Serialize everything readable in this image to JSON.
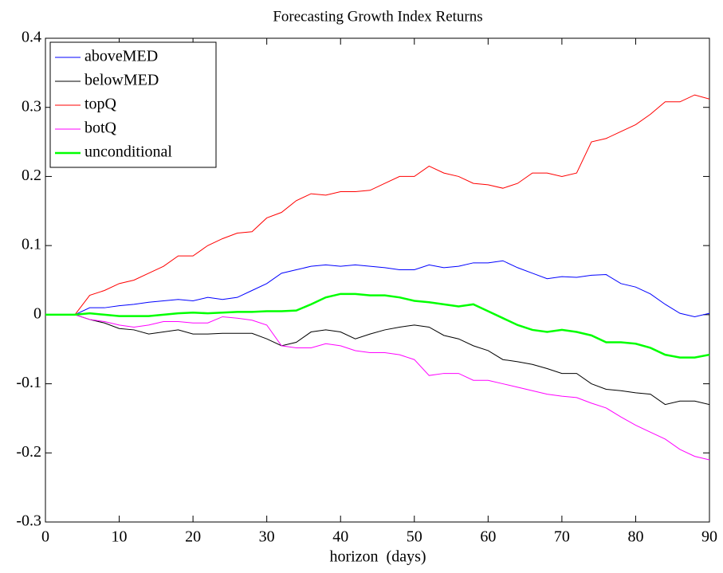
{
  "chart_data": {
    "type": "line",
    "title": "Forecasting Growth Index Returns",
    "x_label": "horizon  (days)",
    "x": [
      0,
      2,
      4,
      6,
      8,
      10,
      12,
      14,
      16,
      18,
      20,
      22,
      24,
      26,
      28,
      30,
      32,
      34,
      36,
      38,
      40,
      42,
      44,
      46,
      48,
      50,
      52,
      54,
      56,
      58,
      60,
      62,
      64,
      66,
      68,
      70,
      72,
      74,
      76,
      78,
      80,
      82,
      84,
      86,
      88,
      90
    ],
    "xlim": [
      0,
      90
    ],
    "xticks": [
      0,
      10,
      20,
      30,
      40,
      50,
      60,
      70,
      80,
      90
    ],
    "ylim": [
      -0.3,
      0.4
    ],
    "yticks": [
      -0.3,
      -0.2,
      -0.1,
      0,
      0.1,
      0.2,
      0.3,
      0.4
    ],
    "legend": "upper-left",
    "series": [
      {
        "name": "aboveMED",
        "color": "#0000ff",
        "linewidth": 1,
        "values": [
          0,
          0,
          0,
          0.01,
          0.01,
          0.013,
          0.015,
          0.018,
          0.02,
          0.022,
          0.02,
          0.025,
          0.022,
          0.025,
          0.035,
          0.045,
          0.06,
          0.065,
          0.07,
          0.072,
          0.07,
          0.072,
          0.07,
          0.068,
          0.065,
          0.065,
          0.072,
          0.068,
          0.07,
          0.075,
          0.075,
          0.078,
          0.068,
          0.06,
          0.052,
          0.055,
          0.054,
          0.057,
          0.058,
          0.045,
          0.04,
          0.03,
          0.015,
          0.002,
          -0.003,
          0.002
        ]
      },
      {
        "name": "belowMED",
        "color": "#000000",
        "linewidth": 1,
        "values": [
          0,
          0,
          0,
          -0.007,
          -0.012,
          -0.02,
          -0.022,
          -0.028,
          -0.025,
          -0.022,
          -0.028,
          -0.028,
          -0.027,
          -0.027,
          -0.027,
          -0.035,
          -0.045,
          -0.04,
          -0.025,
          -0.022,
          -0.025,
          -0.035,
          -0.028,
          -0.022,
          -0.018,
          -0.015,
          -0.018,
          -0.03,
          -0.035,
          -0.045,
          -0.052,
          -0.065,
          -0.068,
          -0.072,
          -0.078,
          -0.085,
          -0.085,
          -0.1,
          -0.108,
          -0.11,
          -0.113,
          -0.115,
          -0.13,
          -0.125,
          -0.125,
          -0.13
        ]
      },
      {
        "name": "topQ",
        "color": "#ff0000",
        "linewidth": 1,
        "values": [
          0,
          0,
          0,
          0.028,
          0.035,
          0.045,
          0.05,
          0.06,
          0.07,
          0.085,
          0.085,
          0.1,
          0.11,
          0.118,
          0.12,
          0.14,
          0.148,
          0.165,
          0.175,
          0.173,
          0.178,
          0.178,
          0.18,
          0.19,
          0.2,
          0.2,
          0.215,
          0.205,
          0.2,
          0.19,
          0.188,
          0.183,
          0.19,
          0.205,
          0.205,
          0.2,
          0.205,
          0.25,
          0.255,
          0.265,
          0.275,
          0.29,
          0.308,
          0.308,
          0.318,
          0.312
        ]
      },
      {
        "name": "botQ",
        "color": "#ff00ff",
        "linewidth": 1,
        "values": [
          0,
          0,
          0,
          -0.007,
          -0.01,
          -0.015,
          -0.018,
          -0.015,
          -0.01,
          -0.01,
          -0.012,
          -0.012,
          -0.003,
          -0.005,
          -0.008,
          -0.015,
          -0.045,
          -0.048,
          -0.048,
          -0.042,
          -0.045,
          -0.052,
          -0.055,
          -0.055,
          -0.058,
          -0.065,
          -0.088,
          -0.085,
          -0.085,
          -0.095,
          -0.095,
          -0.1,
          -0.105,
          -0.11,
          -0.115,
          -0.118,
          -0.12,
          -0.128,
          -0.135,
          -0.148,
          -0.16,
          -0.17,
          -0.18,
          -0.195,
          -0.205,
          -0.21
        ]
      },
      {
        "name": "unconditional",
        "color": "#00ff00",
        "linewidth": 2.5,
        "values": [
          0,
          0,
          0,
          0.002,
          0,
          -0.002,
          -0.002,
          -0.002,
          0,
          0.002,
          0.003,
          0.002,
          0.003,
          0.004,
          0.004,
          0.005,
          0.005,
          0.006,
          0.015,
          0.025,
          0.03,
          0.03,
          0.028,
          0.028,
          0.025,
          0.02,
          0.018,
          0.015,
          0.012,
          0.015,
          0.005,
          -0.005,
          -0.015,
          -0.022,
          -0.025,
          -0.022,
          -0.025,
          -0.03,
          -0.04,
          -0.04,
          -0.042,
          -0.048,
          -0.058,
          -0.062,
          -0.062,
          -0.058
        ]
      }
    ]
  }
}
